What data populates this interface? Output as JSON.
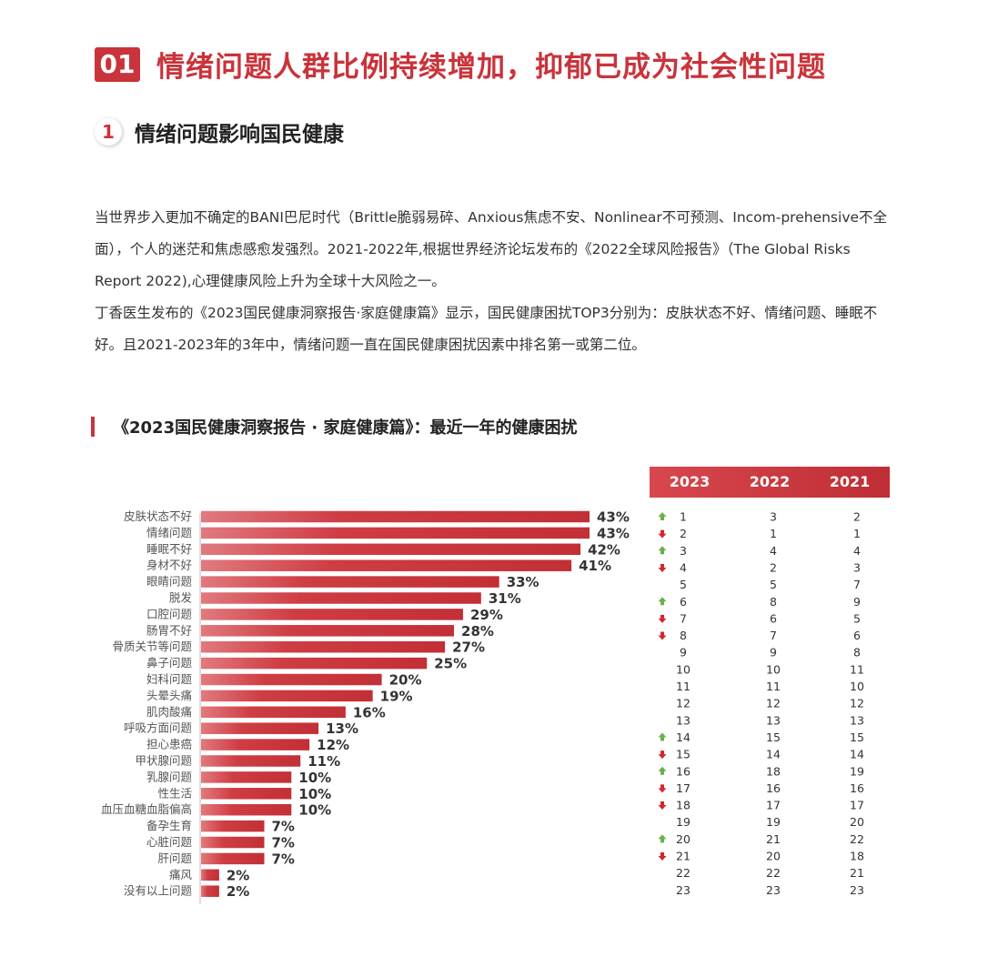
{
  "section": {
    "number": "01",
    "title": "情绪问题人群比例持续增加，抑郁已成为社会性问题"
  },
  "subsection": {
    "number": "1",
    "title": "情绪问题影响国民健康"
  },
  "paragraphs": [
    "当世界步入更加不确定的BANI巴尼时代（Brittle脆弱易碎、Anxious焦虑不安、Nonlinear不可预测、Incom-prehensive不全面），个人的迷茫和焦虑感愈发强烈。2021-2022年,根据世界经济论坛发布的《2022全球风险报告》（The Global Risks Report 2022),心理健康风险上升为全球十大风险之一。",
    "丁香医生发布的《2023国民健康洞察报告·家庭健康篇》显示，国民健康困扰TOP3分别为：皮肤状态不好、情绪问题、睡眠不好。且2021-2023年的3年中，情绪问题一直在国民健康困扰因素中排名第一或第二位。"
  ],
  "chart_title": "《2023国民健康洞察报告 · 家庭健康篇》：最近一年的健康困扰",
  "rank_headers": [
    "2023",
    "2022",
    "2021"
  ],
  "colors": {
    "accent": "#c9333b",
    "bar": "#cf3d44",
    "up": "#6ab04c",
    "down": "#d0282e"
  },
  "chart_data": {
    "type": "bar",
    "orientation": "horizontal",
    "categories": [
      "皮肤状态不好",
      "情绪问题",
      "睡眠不好",
      "身材不好",
      "眼睛问题",
      "脱发",
      "口腔问题",
      "肠胃不好",
      "骨质关节等问题",
      "鼻子问题",
      "妇科问题",
      "头晕头痛",
      "肌肉酸痛",
      "呼吸方面问题",
      "担心患癌",
      "甲状腺问题",
      "乳腺问题",
      "性生活",
      "血压血糖血脂偏高",
      "备孕生育",
      "心脏问题",
      "肝问题",
      "痛风",
      "没有以上问题"
    ],
    "values": [
      43,
      43,
      42,
      41,
      33,
      31,
      29,
      28,
      27,
      25,
      20,
      19,
      16,
      13,
      12,
      11,
      10,
      10,
      10,
      7,
      7,
      7,
      2,
      2
    ],
    "value_labels": [
      "43%",
      "43%",
      "42%",
      "41%",
      "33%",
      "31%",
      "29%",
      "28%",
      "27%",
      "25%",
      "20%",
      "19%",
      "16%",
      "13%",
      "12%",
      "11%",
      "10%",
      "10%",
      "10%",
      "7%",
      "7%",
      "7%",
      "2%",
      "2%"
    ],
    "xlim": [
      0,
      43
    ],
    "rankings": {
      "2023": [
        "1",
        "2",
        "3",
        "4",
        "5",
        "6",
        "7",
        "8",
        "9",
        "10",
        "11",
        "12",
        "13",
        "14",
        "15",
        "16",
        "17",
        "18",
        "19",
        "20",
        "21",
        "22",
        "23"
      ],
      "2022": [
        "3",
        "1",
        "4",
        "2",
        "5",
        "8",
        "6",
        "7",
        "9",
        "10",
        "11",
        "12",
        "13",
        "15",
        "14",
        "18",
        "16",
        "17",
        "19",
        "21",
        "20",
        "22",
        "23"
      ],
      "2021": [
        "2",
        "1",
        "4",
        "3",
        "7",
        "9",
        "5",
        "6",
        "8",
        "11",
        "10",
        "12",
        "13",
        "15",
        "14",
        "19",
        "16",
        "17",
        "20",
        "22",
        "18",
        "21",
        "23"
      ],
      "trend": [
        "up",
        "down",
        "up",
        "down",
        "",
        "up",
        "down",
        "down",
        "",
        "",
        "",
        "",
        "",
        "up",
        "down",
        "up",
        "down",
        "down",
        "",
        "up",
        "down",
        "",
        ""
      ]
    }
  }
}
